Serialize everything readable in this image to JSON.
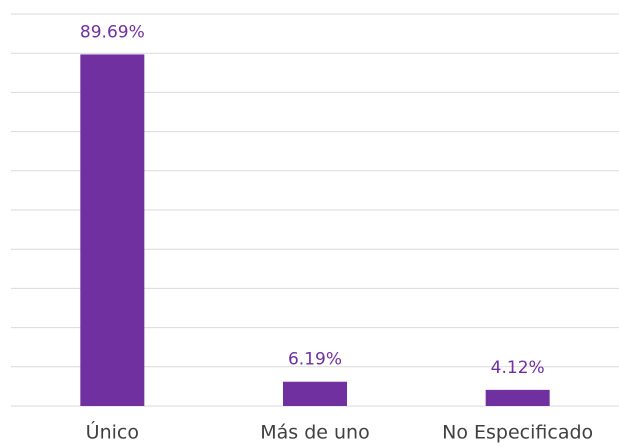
{
  "chart_data": {
    "type": "bar",
    "categories": [
      "Único",
      "Más de uno",
      "No Especificado"
    ],
    "values": [
      89.69,
      6.19,
      4.12
    ],
    "value_labels": [
      "89.69%",
      "6.19%",
      "4.12%"
    ],
    "color": "#7030a0",
    "ylim": [
      0,
      100
    ],
    "yticks": [
      0,
      10,
      20,
      30,
      40,
      50,
      60,
      70,
      80,
      90,
      100
    ],
    "grid": true
  }
}
